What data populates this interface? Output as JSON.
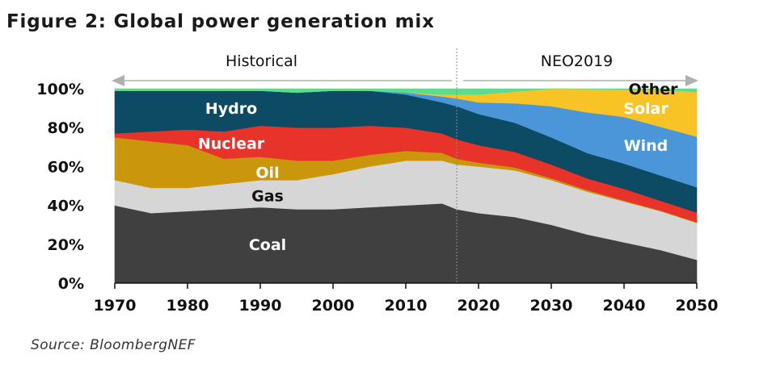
{
  "figure": {
    "title": "Figure 2: Global power generation mix",
    "source": "Source: BloombergNEF"
  },
  "chart_data": {
    "type": "area",
    "stacked": true,
    "title": "Figure 2: Global power generation mix",
    "xlabel": "",
    "ylabel": "",
    "xlim": [
      1970,
      2050
    ],
    "ylim": [
      0,
      100
    ],
    "x_ticks": [
      1970,
      1980,
      1990,
      2000,
      2010,
      2020,
      2030,
      2040,
      2050
    ],
    "y_ticks": [
      "0%",
      "20%",
      "40%",
      "60%",
      "80%",
      "100%"
    ],
    "y_tick_values": [
      0,
      20,
      40,
      60,
      80,
      100
    ],
    "periods": [
      {
        "label": "Historical",
        "from": 1970,
        "to": 2017
      },
      {
        "label": "NEO2019",
        "from": 2017,
        "to": 2050
      }
    ],
    "divider_year": 2017,
    "x": [
      1970,
      1975,
      1980,
      1985,
      1990,
      1995,
      2000,
      2005,
      2010,
      2015,
      2017,
      2020,
      2025,
      2030,
      2035,
      2040,
      2045,
      2050
    ],
    "series": [
      {
        "name": "Coal",
        "label": "Coal",
        "color": "#404040",
        "label_color": "#ffffff",
        "label_year": 1991,
        "label_value": 20,
        "values": [
          40,
          36,
          37,
          38,
          39,
          38,
          38,
          39,
          40,
          41,
          38,
          36,
          34,
          30,
          25,
          21,
          17,
          12
        ]
      },
      {
        "name": "Gas",
        "label": "Gas",
        "color": "#d6d6d6",
        "label_color": "#111111",
        "label_year": 1991,
        "label_value": 45,
        "values": [
          13,
          13,
          12,
          13,
          14,
          15,
          18,
          21,
          23,
          22,
          23,
          24,
          24,
          23,
          22,
          21,
          20,
          19
        ]
      },
      {
        "name": "Oil",
        "label": "Oil",
        "color": "#c9960c",
        "label_color": "#ffffff",
        "label_year": 1991,
        "label_value": 57,
        "values": [
          22,
          24,
          22,
          13,
          12,
          10,
          7,
          6,
          5,
          4,
          3,
          2,
          1.5,
          1,
          0.8,
          0.5,
          0.4,
          0.3
        ]
      },
      {
        "name": "Nuclear",
        "label": "Nuclear",
        "color": "#e8332b",
        "label_color": "#ffffff",
        "label_year": 1986,
        "label_value": 72,
        "values": [
          2,
          5,
          8,
          14,
          16,
          17,
          17,
          15,
          12,
          10,
          10,
          9,
          8,
          7,
          6,
          6,
          5,
          5
        ]
      },
      {
        "name": "Hydro",
        "label": "Hydro",
        "color": "#0d4a63",
        "label_color": "#ffffff",
        "label_year": 1986,
        "label_value": 90,
        "values": [
          22,
          21,
          20,
          21,
          18,
          18,
          19,
          18,
          17,
          16,
          17,
          16,
          15,
          14,
          13,
          13,
          13,
          13
        ]
      },
      {
        "name": "Wind",
        "label": "Wind",
        "color": "#4a96d9",
        "label_color": "#ffffff",
        "label_year": 2043,
        "label_value": 71,
        "values": [
          0,
          0,
          0,
          0,
          0,
          0,
          0,
          0,
          1,
          3,
          4,
          6,
          10,
          16,
          21,
          24,
          25,
          26
        ]
      },
      {
        "name": "Solar",
        "label": "Solar",
        "color": "#f7c325",
        "label_color": "#ffffff",
        "label_year": 2043,
        "label_value": 90,
        "values": [
          0,
          0,
          0,
          0,
          0,
          0,
          0,
          0,
          0,
          1,
          2,
          4,
          6,
          9,
          12,
          14,
          19,
          23
        ]
      },
      {
        "name": "Other",
        "label": "Other",
        "color": "#5edc8d",
        "label_color": "#111111",
        "label_year": 2044,
        "label_value": 100,
        "values": [
          1,
          1,
          1,
          1,
          1,
          2,
          1,
          1,
          2,
          3,
          3,
          3,
          1.5,
          0,
          0.2,
          0.5,
          0.6,
          1.7
        ]
      }
    ]
  }
}
